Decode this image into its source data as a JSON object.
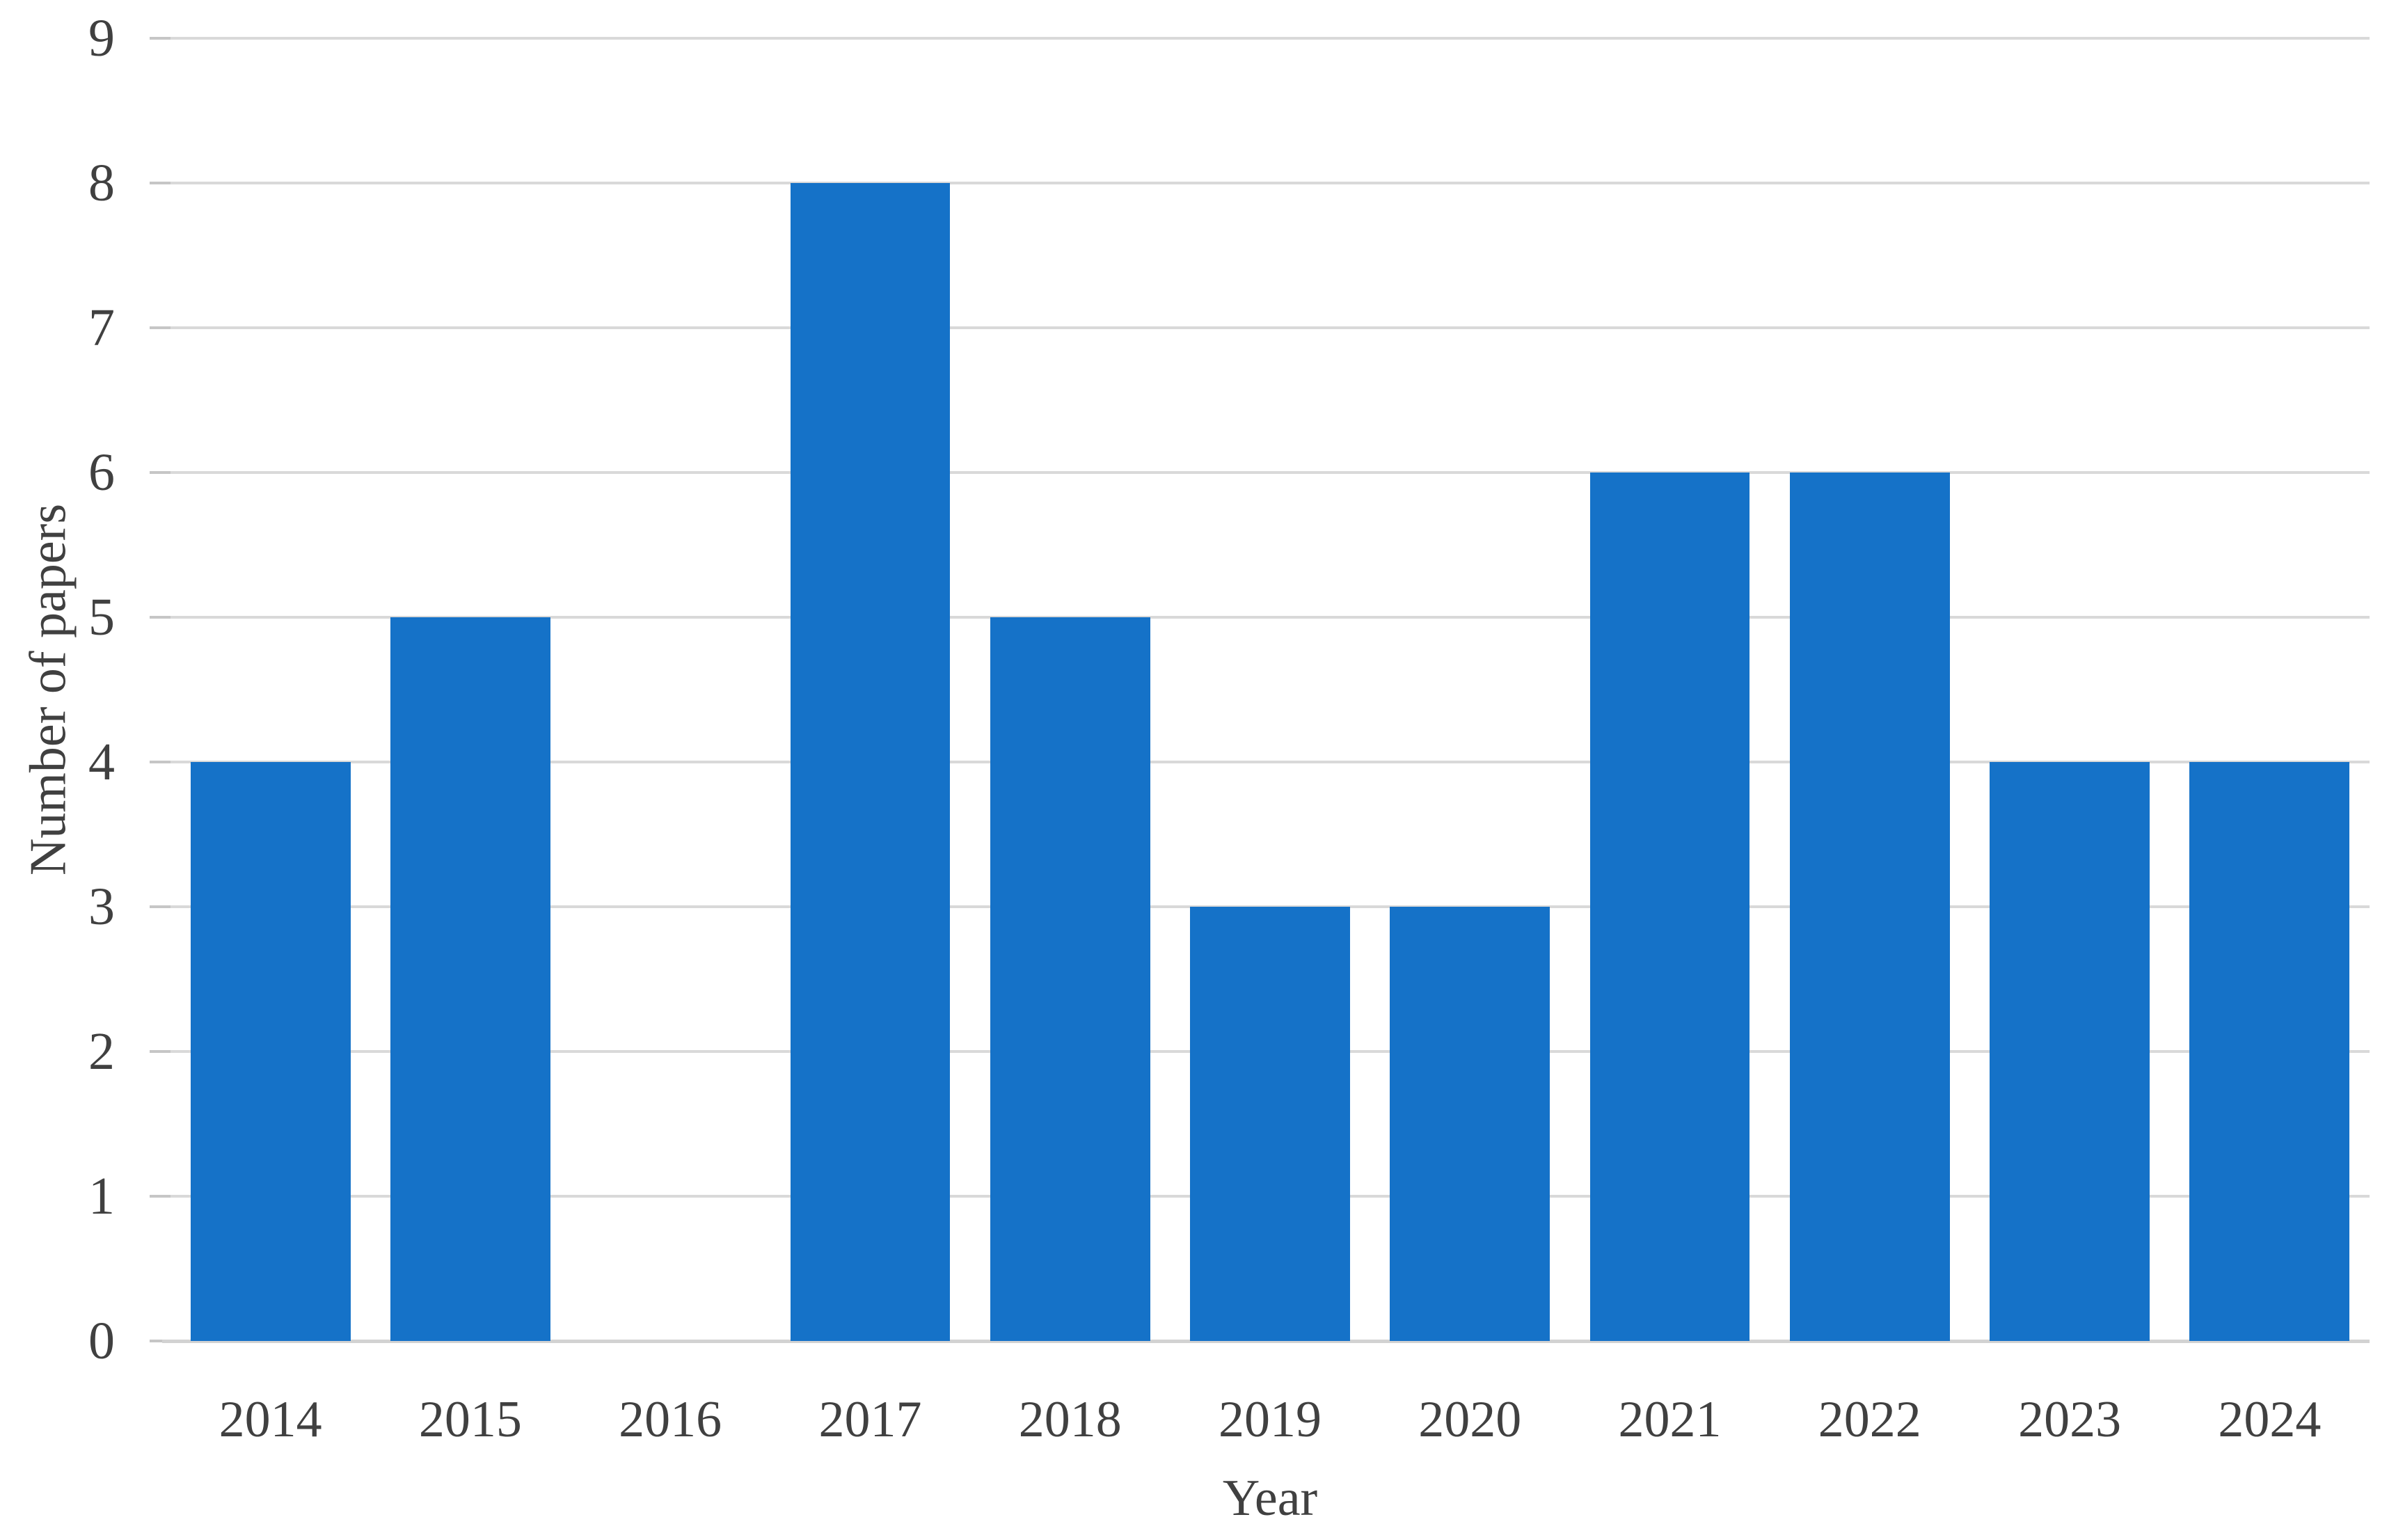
{
  "chart_data": {
    "type": "bar",
    "title": "",
    "xlabel": "Year",
    "ylabel": "Number of papers",
    "categories": [
      "2014",
      "2015",
      "2016",
      "2017",
      "2018",
      "2019",
      "2020",
      "2021",
      "2022",
      "2023",
      "2024"
    ],
    "values": [
      4,
      5,
      0,
      8,
      5,
      3,
      3,
      6,
      6,
      4,
      4
    ],
    "ylim": [
      0,
      9
    ],
    "yticks": [
      0,
      1,
      2,
      3,
      4,
      5,
      6,
      7,
      8,
      9
    ],
    "grid": "horizontal",
    "legend": "none",
    "colors": {
      "bar": "#1572C8",
      "gridline": "#D9D9D9",
      "axis_line": "#D2D2D2",
      "tick": "#C6C6C6",
      "text": "#404040"
    }
  }
}
